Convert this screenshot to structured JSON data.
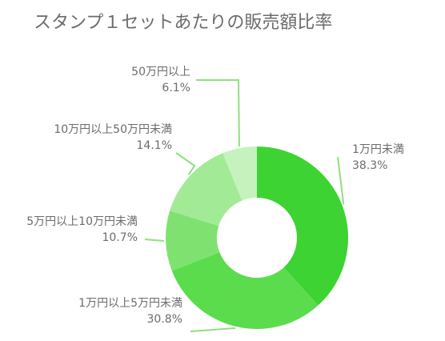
{
  "chart_data": {
    "type": "pie",
    "variant": "donut",
    "title": "スタンプ１セットあたりの販売額比率",
    "categories": [
      "1万円未満",
      "1万円以上5万円未満",
      "5万円以上10万円未満",
      "10万円以上50万円未満",
      "50万円以上"
    ],
    "values": [
      38.3,
      30.8,
      10.7,
      14.1,
      6.1
    ],
    "value_labels": [
      "38.3%",
      "30.8%",
      "10.7%",
      "14.1%",
      "6.1%"
    ],
    "colors": [
      "#3dd332",
      "#5bdc4d",
      "#7fe270",
      "#a3ea96",
      "#c5f2bd"
    ],
    "leader_color": "#8ee07f",
    "legend": "none"
  }
}
